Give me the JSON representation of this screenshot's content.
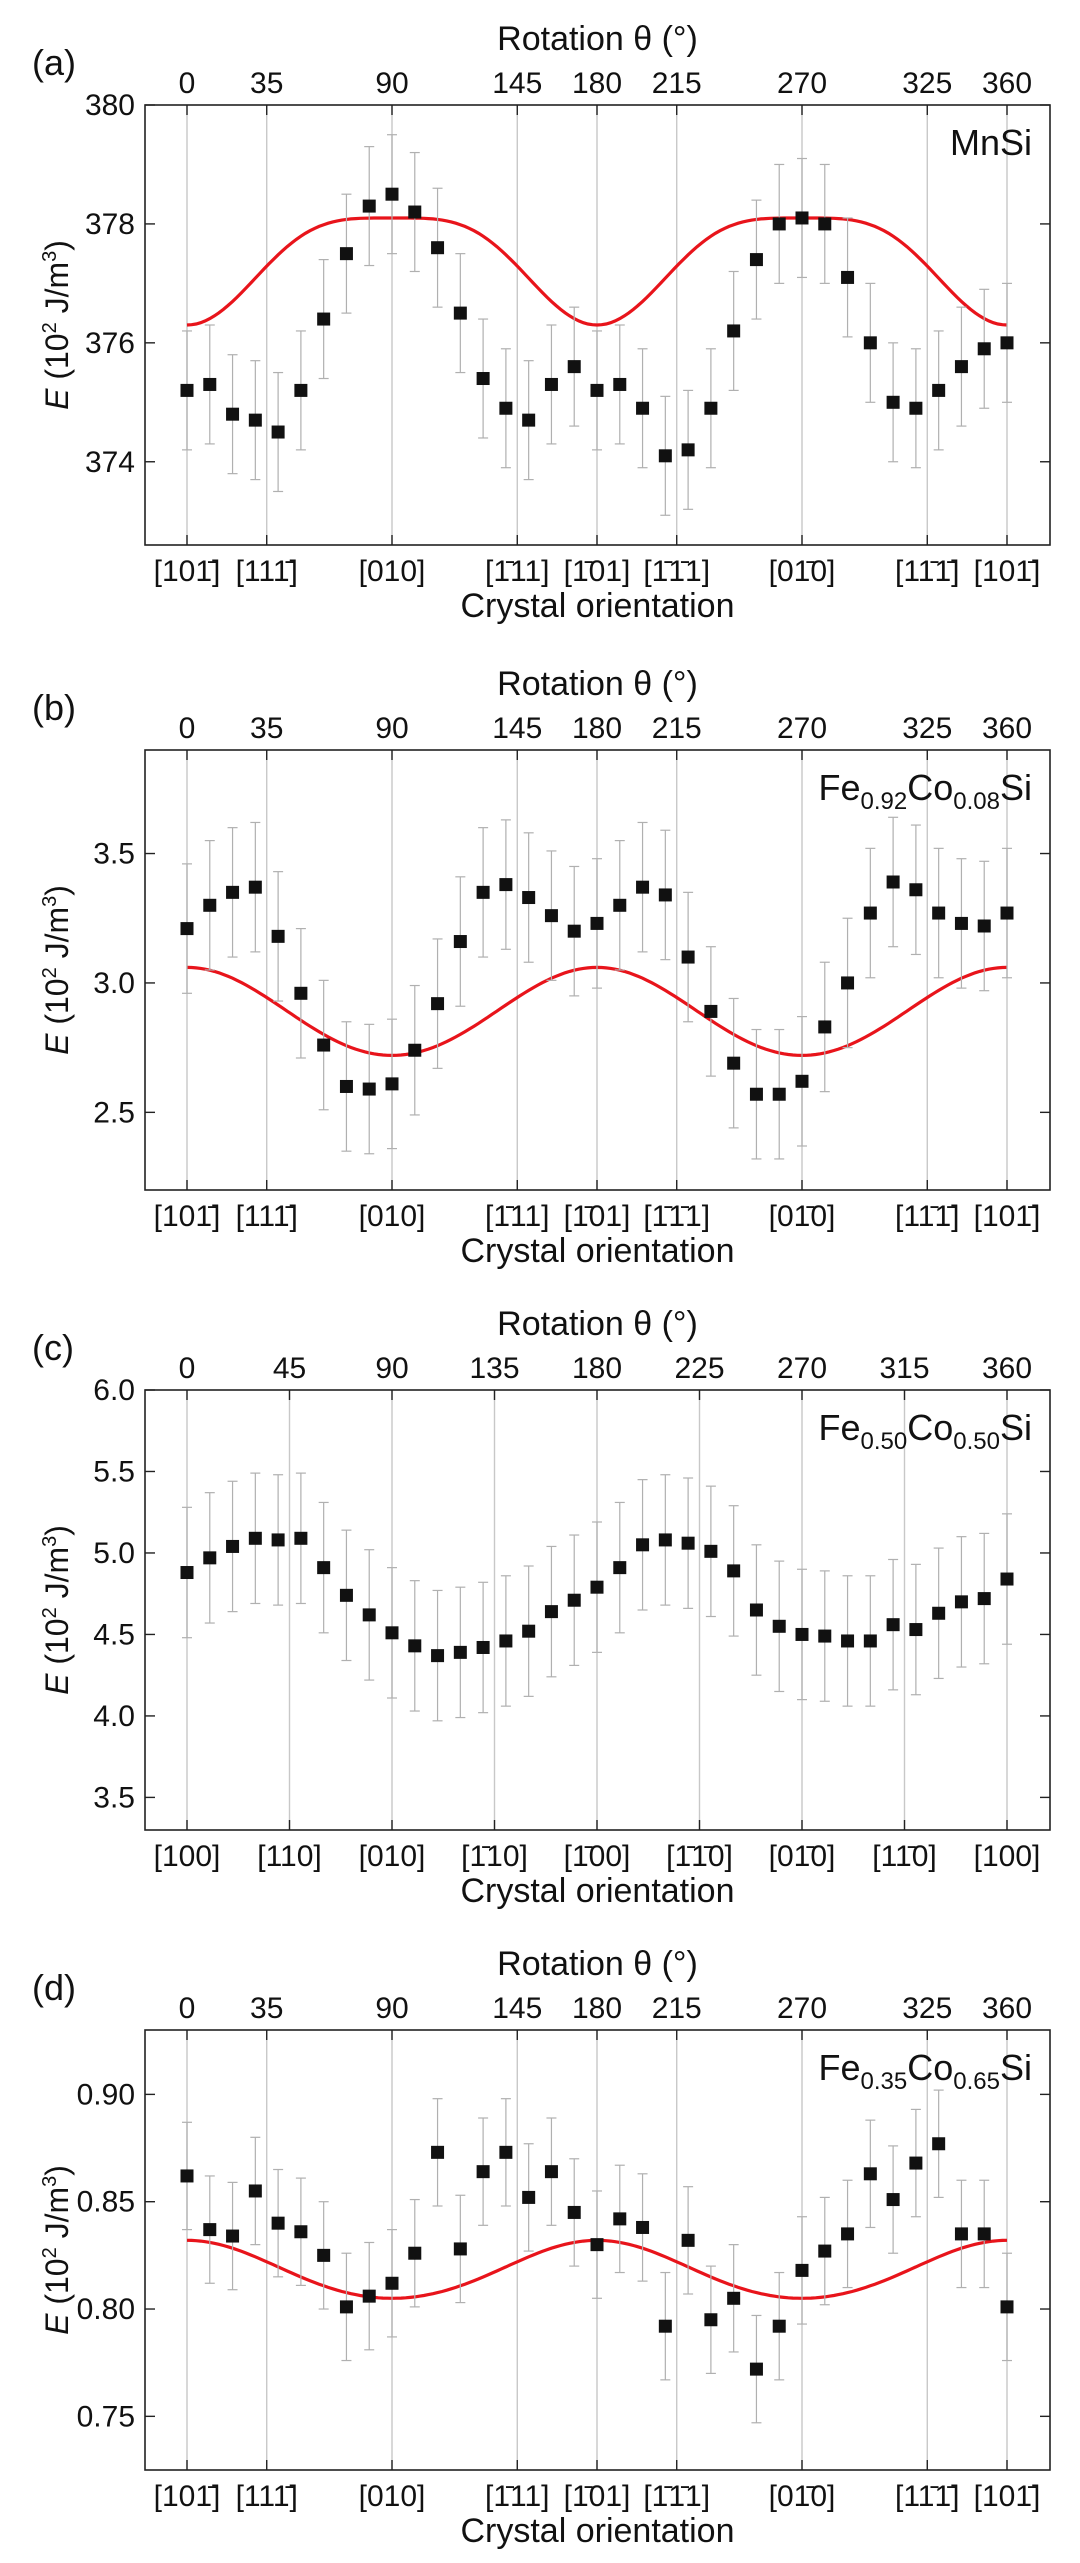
{
  "colors": {
    "points": "#111111",
    "fit": "#e8141b",
    "grid": "#c8c8c8",
    "errorbars": "#b0b0b0"
  },
  "chart_data": [
    {
      "type": "scatter",
      "panel": "(a)",
      "sample": "MnSi",
      "top_axis_label": "Rotation θ (°)",
      "ylabel": "E (10² J/m³)",
      "xlabel": "Crystal orientation",
      "ylim": [
        372.6,
        380.0
      ],
      "yticks": [
        374,
        376,
        378,
        380
      ],
      "top_ticks": [
        "0",
        "35",
        "90",
        "145",
        "180",
        "215",
        "270",
        "325",
        "360"
      ],
      "orientations": [
        "[101̄]",
        "[111̄]",
        "[010]",
        "[1̄11]",
        "[1̄01]",
        "[1̄1̄1]",
        "[01̄0]",
        "[11̄1̄]",
        "[101̄]"
      ],
      "fit": {
        "A": 1.8,
        "B": 0.9,
        "offset": 376.3
      },
      "error": 1.0,
      "series": [
        {
          "x": [
            0,
            10,
            20,
            30,
            40,
            50,
            60,
            70,
            80,
            90,
            100,
            110,
            120,
            130,
            140,
            150,
            160,
            170,
            180,
            190,
            200,
            210,
            220,
            230,
            240,
            250,
            260,
            270,
            280,
            290,
            300,
            310,
            320,
            330,
            340,
            350,
            360
          ],
          "y": [
            375.2,
            375.3,
            374.8,
            374.7,
            374.5,
            375.2,
            376.4,
            377.5,
            378.3,
            378.5,
            378.2,
            377.6,
            376.5,
            375.4,
            374.9,
            374.7,
            375.3,
            375.6,
            375.2,
            375.3,
            374.9,
            374.1,
            374.2,
            374.9,
            376.2,
            377.4,
            378.0,
            378.1,
            378.0,
            377.1,
            376.0,
            375.0,
            374.9,
            375.2,
            375.6,
            375.9,
            376.0
          ]
        }
      ]
    },
    {
      "type": "scatter",
      "panel": "(b)",
      "sample": "Fe0.92Co0.08Si",
      "top_axis_label": "Rotation θ (°)",
      "ylabel": "E (10² J/m³)",
      "xlabel": "Crystal orientation",
      "ylim": [
        2.2,
        3.9
      ],
      "yticks": [
        2.5,
        3.0,
        3.5
      ],
      "top_ticks": [
        "0",
        "35",
        "90",
        "145",
        "180",
        "215",
        "270",
        "325",
        "360"
      ],
      "orientations": [
        "[101̄]",
        "[111̄]",
        "[010]",
        "[1̄11]",
        "[1̄01]",
        "[1̄1̄1]",
        "[01̄0]",
        "[11̄1̄]",
        "[101̄]"
      ],
      "fit": {
        "A": -0.34,
        "B": -0.09,
        "offset": 3.06
      },
      "error": 0.25,
      "series": [
        {
          "x": [
            0,
            10,
            20,
            30,
            40,
            50,
            60,
            70,
            80,
            90,
            100,
            110,
            120,
            130,
            140,
            150,
            160,
            170,
            180,
            190,
            200,
            210,
            220,
            230,
            240,
            250,
            260,
            270,
            280,
            290,
            300,
            310,
            320,
            330,
            340,
            350,
            360
          ],
          "y": [
            3.21,
            3.3,
            3.35,
            3.37,
            3.18,
            2.96,
            2.76,
            2.6,
            2.59,
            2.61,
            2.74,
            2.92,
            3.16,
            3.35,
            3.38,
            3.33,
            3.26,
            3.2,
            3.23,
            3.3,
            3.37,
            3.34,
            3.1,
            2.89,
            2.69,
            2.57,
            2.57,
            2.62,
            2.83,
            3.0,
            3.27,
            3.39,
            3.36,
            3.27,
            3.23,
            3.22,
            3.27
          ]
        }
      ]
    },
    {
      "type": "scatter",
      "panel": "(c)",
      "sample": "Fe0.50Co0.50Si",
      "top_axis_label": "Rotation θ (°)",
      "ylabel": "E (10² J/m³)",
      "xlabel": "Crystal orientation",
      "ylim": [
        3.3,
        6.0
      ],
      "yticks": [
        3.5,
        4.0,
        4.5,
        5.0,
        5.5,
        6.0
      ],
      "top_ticks": [
        "0",
        "45",
        "90",
        "135",
        "180",
        "225",
        "270",
        "315",
        "360"
      ],
      "orientations": [
        "[100]",
        "[110]",
        "[010]",
        "[1̄10]",
        "[1̄00]",
        "[1̄1̄0]",
        "[01̄0]",
        "[11̄0]",
        "[100]"
      ],
      "error": 0.4,
      "series": [
        {
          "x": [
            0,
            10,
            20,
            30,
            40,
            50,
            60,
            70,
            80,
            90,
            100,
            110,
            120,
            130,
            140,
            150,
            160,
            170,
            180,
            190,
            200,
            210,
            220,
            230,
            240,
            250,
            260,
            270,
            280,
            290,
            300,
            310,
            320,
            330,
            340,
            350,
            360
          ],
          "y": [
            4.88,
            4.97,
            5.04,
            5.09,
            5.08,
            5.09,
            4.91,
            4.74,
            4.62,
            4.51,
            4.43,
            4.37,
            4.39,
            4.42,
            4.46,
            4.52,
            4.64,
            4.71,
            4.79,
            4.91,
            5.05,
            5.08,
            5.06,
            5.01,
            4.89,
            4.65,
            4.55,
            4.5,
            4.49,
            4.46,
            4.46,
            4.56,
            4.53,
            4.63,
            4.7,
            4.72,
            4.84
          ]
        }
      ]
    },
    {
      "type": "scatter",
      "panel": "(d)",
      "sample": "Fe0.35Co0.65Si",
      "top_axis_label": "Rotation θ (°)",
      "ylabel": "E (10² J/m³)",
      "xlabel": "Crystal orientation",
      "ylim": [
        0.725,
        0.93
      ],
      "yticks": [
        0.75,
        0.8,
        0.85,
        0.9
      ],
      "top_ticks": [
        "0",
        "35",
        "90",
        "145",
        "180",
        "215",
        "270",
        "325",
        "360"
      ],
      "orientations": [
        "[101̄]",
        "[111̄]",
        "[010]",
        "[1̄11]",
        "[1̄01]",
        "[1̄1̄1]",
        "[01̄0]",
        "[11̄1̄]",
        "[101̄]"
      ],
      "fit": {
        "A": -0.027,
        "B": -0.008,
        "offset": 0.832
      },
      "error": 0.025,
      "series": [
        {
          "x": [
            0,
            10,
            20,
            30,
            40,
            50,
            60,
            70,
            80,
            90,
            100,
            110,
            120,
            130,
            140,
            150,
            160,
            170,
            180,
            190,
            200,
            210,
            220,
            230,
            240,
            250,
            260,
            270,
            280,
            290,
            300,
            310,
            320,
            330,
            340,
            350,
            360
          ],
          "y": [
            0.862,
            0.837,
            0.834,
            0.855,
            0.84,
            0.836,
            0.825,
            0.801,
            0.806,
            0.812,
            0.826,
            0.873,
            0.828,
            0.864,
            0.873,
            0.852,
            0.864,
            0.845,
            0.83,
            0.842,
            0.838,
            0.792,
            0.832,
            0.795,
            0.805,
            0.772,
            0.792,
            0.818,
            0.827,
            0.835,
            0.863,
            0.851,
            0.868,
            0.877,
            0.835,
            0.835,
            0.801
          ]
        }
      ]
    }
  ]
}
